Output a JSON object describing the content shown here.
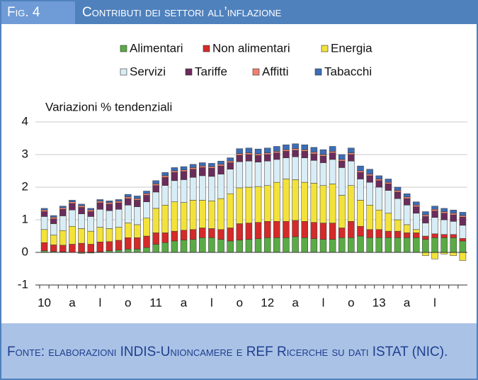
{
  "header": {
    "figure": "Fig. 4",
    "title": "Contributi dei settori all’inflazione"
  },
  "chart_data": {
    "type": "stacked_bar",
    "ylabel": "Variazioni % tendenziali",
    "categories": [
      "10",
      null,
      null,
      "a",
      null,
      null,
      "l",
      null,
      null,
      "o",
      null,
      null,
      "11",
      null,
      null,
      "a",
      null,
      null,
      "l",
      null,
      null,
      "o",
      null,
      null,
      "12",
      null,
      null,
      "a",
      null,
      null,
      "l",
      null,
      null,
      "o",
      null,
      null,
      "13",
      null,
      null,
      "a",
      null,
      null,
      "l",
      null,
      null,
      null
    ],
    "ylim": [
      -1,
      4
    ],
    "yticks": [
      -1,
      0,
      1,
      2,
      3,
      4
    ],
    "grid": true,
    "series": [
      {
        "name": "Alimentari",
        "color": "#5aaa46",
        "values": [
          0.05,
          0.03,
          0.02,
          0.0,
          -0.03,
          -0.02,
          0.02,
          0.05,
          0.07,
          0.1,
          0.1,
          0.15,
          0.25,
          0.3,
          0.35,
          0.38,
          0.4,
          0.45,
          0.45,
          0.4,
          0.35,
          0.38,
          0.4,
          0.42,
          0.45,
          0.45,
          0.45,
          0.48,
          0.45,
          0.42,
          0.4,
          0.4,
          0.45,
          0.45,
          0.5,
          0.45,
          0.45,
          0.45,
          0.45,
          0.45,
          0.45,
          0.4,
          0.45,
          0.45,
          0.45,
          0.35
        ]
      },
      {
        "name": "Non alimentari",
        "color": "#d42a2a",
        "values": [
          0.25,
          0.2,
          0.2,
          0.25,
          0.28,
          0.25,
          0.3,
          0.28,
          0.3,
          0.35,
          0.35,
          0.35,
          0.35,
          0.3,
          0.3,
          0.3,
          0.3,
          0.3,
          0.28,
          0.3,
          0.4,
          0.5,
          0.5,
          0.5,
          0.5,
          0.5,
          0.5,
          0.5,
          0.5,
          0.5,
          0.5,
          0.5,
          0.3,
          0.5,
          0.3,
          0.25,
          0.25,
          0.2,
          0.2,
          0.15,
          0.15,
          0.1,
          0.12,
          0.1,
          0.1,
          0.08
        ]
      },
      {
        "name": "Energia",
        "color": "#f3e23a",
        "values": [
          0.4,
          0.3,
          0.45,
          0.55,
          0.45,
          0.4,
          0.45,
          0.4,
          0.4,
          0.45,
          0.4,
          0.55,
          0.75,
          0.85,
          0.9,
          0.85,
          0.9,
          0.85,
          0.85,
          0.95,
          1.05,
          1.1,
          1.1,
          1.1,
          1.1,
          1.2,
          1.3,
          1.25,
          1.2,
          1.2,
          1.15,
          1.2,
          1.0,
          1.1,
          0.8,
          0.75,
          0.6,
          0.55,
          0.35,
          0.25,
          0.1,
          -0.1,
          -0.2,
          -0.05,
          -0.1,
          -0.25
        ]
      },
      {
        "name": "Servizi",
        "color": "#d8edf6",
        "values": [
          0.4,
          0.35,
          0.45,
          0.5,
          0.45,
          0.45,
          0.55,
          0.55,
          0.55,
          0.55,
          0.55,
          0.5,
          0.5,
          0.6,
          0.65,
          0.7,
          0.7,
          0.75,
          0.75,
          0.75,
          0.75,
          0.8,
          0.8,
          0.75,
          0.75,
          0.7,
          0.65,
          0.7,
          0.75,
          0.7,
          0.7,
          0.75,
          0.85,
          0.75,
          0.65,
          0.7,
          0.7,
          0.7,
          0.65,
          0.6,
          0.5,
          0.4,
          0.5,
          0.45,
          0.4,
          0.4
        ]
      },
      {
        "name": "Tariffe",
        "color": "#6b2c5c",
        "values": [
          0.15,
          0.15,
          0.2,
          0.2,
          0.2,
          0.15,
          0.2,
          0.2,
          0.2,
          0.2,
          0.2,
          0.2,
          0.2,
          0.25,
          0.25,
          0.25,
          0.25,
          0.25,
          0.25,
          0.25,
          0.2,
          0.2,
          0.2,
          0.2,
          0.2,
          0.2,
          0.2,
          0.2,
          0.2,
          0.2,
          0.2,
          0.2,
          0.2,
          0.2,
          0.2,
          0.2,
          0.2,
          0.2,
          0.2,
          0.2,
          0.2,
          0.2,
          0.2,
          0.2,
          0.2,
          0.25
        ]
      },
      {
        "name": "Affitti",
        "color": "#f08070",
        "values": [
          0.05,
          0.05,
          0.05,
          0.05,
          0.05,
          0.05,
          0.05,
          0.05,
          0.05,
          0.05,
          0.05,
          0.05,
          0.05,
          0.05,
          0.05,
          0.05,
          0.05,
          0.05,
          0.05,
          0.05,
          0.05,
          0.05,
          0.05,
          0.05,
          0.05,
          0.05,
          0.05,
          0.05,
          0.05,
          0.05,
          0.05,
          0.05,
          0.05,
          0.05,
          0.05,
          0.05,
          0.05,
          0.05,
          0.05,
          0.05,
          0.05,
          0.05,
          0.05,
          0.05,
          0.05,
          0.05
        ]
      },
      {
        "name": "Tabacchi",
        "color": "#3d6db5",
        "values": [
          0.05,
          0.05,
          0.05,
          0.05,
          0.05,
          0.05,
          0.05,
          0.05,
          0.05,
          0.08,
          0.08,
          0.08,
          0.1,
          0.1,
          0.1,
          0.1,
          0.1,
          0.1,
          0.1,
          0.1,
          0.1,
          0.15,
          0.15,
          0.15,
          0.15,
          0.15,
          0.15,
          0.15,
          0.15,
          0.15,
          0.15,
          0.15,
          0.15,
          0.15,
          0.15,
          0.15,
          0.1,
          0.1,
          0.1,
          0.1,
          0.1,
          0.1,
          0.1,
          0.1,
          0.1,
          0.1
        ]
      }
    ]
  },
  "footer": "Fonte: elaborazioni INDIS-Unioncamere e REF Ricerche su dati ISTAT (NIC)."
}
